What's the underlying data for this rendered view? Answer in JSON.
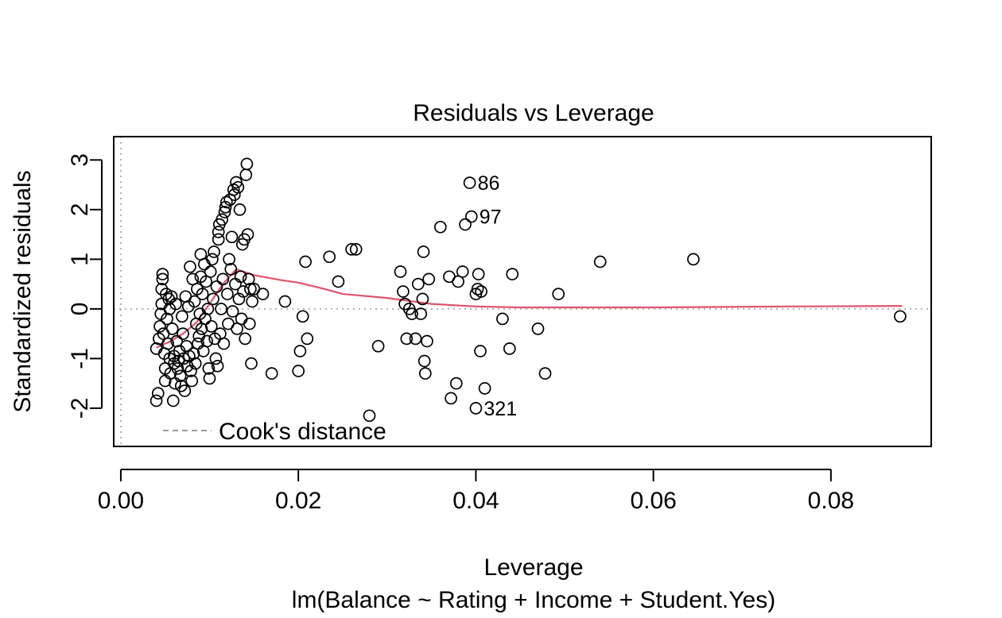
{
  "chart_data": {
    "type": "scatter",
    "title": "Residuals vs Leverage",
    "xlabel": "Leverage",
    "sublabel": "lm(Balance ~ Rating + Income + Student.Yes)",
    "ylabel": "Standardized residuals",
    "xlim": [
      -0.0008,
      0.0913
    ],
    "ylim": [
      -2.77,
      3.47
    ],
    "x_ticks": [
      0.0,
      0.02,
      0.04,
      0.06,
      0.08
    ],
    "x_tick_labels": [
      "0.00",
      "0.02",
      "0.04",
      "0.06",
      "0.08"
    ],
    "y_ticks": [
      -2,
      -1,
      0,
      1,
      2,
      3
    ],
    "y_tick_labels": [
      "-2",
      "-1",
      "0",
      "1",
      "2",
      "3"
    ],
    "reference_lines": {
      "h": 0,
      "v": 0,
      "style": "dotted",
      "color": "#b0b0b0"
    },
    "legend": {
      "label": "Cook's distance",
      "position": "bottom-left",
      "color": "#999999"
    },
    "smoother_color": "#DF536B",
    "smoother": [
      [
        0.004,
        -0.78
      ],
      [
        0.0055,
        -0.66
      ],
      [
        0.007,
        -0.5
      ],
      [
        0.0085,
        -0.28
      ],
      [
        0.01,
        0.1
      ],
      [
        0.0115,
        0.5
      ],
      [
        0.013,
        0.8
      ],
      [
        0.015,
        0.68
      ],
      [
        0.018,
        0.58
      ],
      [
        0.02,
        0.53
      ],
      [
        0.023,
        0.4
      ],
      [
        0.025,
        0.3
      ],
      [
        0.03,
        0.22
      ],
      [
        0.035,
        0.1
      ],
      [
        0.04,
        0.05
      ],
      [
        0.045,
        0.03
      ],
      [
        0.06,
        0.03
      ],
      [
        0.075,
        0.05
      ],
      [
        0.088,
        0.06
      ]
    ],
    "labeled_points": [
      {
        "label": "86",
        "x": 0.0393,
        "y": 2.54
      },
      {
        "label": "97",
        "x": 0.0395,
        "y": 1.86
      },
      {
        "label": "321",
        "x": 0.04,
        "y": -2.0
      }
    ],
    "points": [
      [
        0.004,
        -0.8
      ],
      [
        0.004,
        -1.85
      ],
      [
        0.0042,
        -1.7
      ],
      [
        0.0043,
        -0.6
      ],
      [
        0.0044,
        -0.35
      ],
      [
        0.0045,
        -0.1
      ],
      [
        0.0046,
        0.1
      ],
      [
        0.0046,
        0.4
      ],
      [
        0.0047,
        0.6
      ],
      [
        0.0047,
        0.7
      ],
      [
        0.0048,
        -0.5
      ],
      [
        0.0049,
        -0.9
      ],
      [
        0.005,
        -1.2
      ],
      [
        0.005,
        -1.45
      ],
      [
        0.0051,
        0.3
      ],
      [
        0.0052,
        -0.2
      ],
      [
        0.0053,
        -0.7
      ],
      [
        0.0054,
        0.2
      ],
      [
        0.0055,
        -1.0
      ],
      [
        0.0055,
        0.0
      ],
      [
        0.0056,
        -1.3
      ],
      [
        0.0057,
        0.25
      ],
      [
        0.0058,
        -0.4
      ],
      [
        0.0059,
        -1.85
      ],
      [
        0.006,
        -0.95
      ],
      [
        0.006,
        -1.1
      ],
      [
        0.0061,
        -1.5
      ],
      [
        0.0062,
        0.1
      ],
      [
        0.0063,
        -0.65
      ],
      [
        0.0064,
        -1.2
      ],
      [
        0.0065,
        -1.05
      ],
      [
        0.0066,
        -0.85
      ],
      [
        0.0067,
        -1.35
      ],
      [
        0.0068,
        -1.55
      ],
      [
        0.0069,
        -0.15
      ],
      [
        0.007,
        -0.5
      ],
      [
        0.0071,
        -1.0
      ],
      [
        0.0072,
        -1.65
      ],
      [
        0.0073,
        0.25
      ],
      [
        0.0074,
        -0.75
      ],
      [
        0.0075,
        -1.15
      ],
      [
        0.0076,
        0.05
      ],
      [
        0.0077,
        -0.95
      ],
      [
        0.0078,
        0.85
      ],
      [
        0.0079,
        -1.25
      ],
      [
        0.008,
        -1.45
      ],
      [
        0.0081,
        0.6
      ],
      [
        0.0082,
        -0.9
      ],
      [
        0.0083,
        0.15
      ],
      [
        0.0084,
        -1.1
      ],
      [
        0.0085,
        -0.3
      ],
      [
        0.0086,
        0.4
      ],
      [
        0.0087,
        -0.7
      ],
      [
        0.0088,
        -0.55
      ],
      [
        0.0089,
        -0.1
      ],
      [
        0.009,
        1.1
      ],
      [
        0.009,
        0.65
      ],
      [
        0.0091,
        -0.4
      ],
      [
        0.0092,
        0.3
      ],
      [
        0.0093,
        -0.85
      ],
      [
        0.0094,
        0.9
      ],
      [
        0.0095,
        -0.2
      ],
      [
        0.0096,
        0.55
      ],
      [
        0.0097,
        -0.65
      ],
      [
        0.0098,
        0.0
      ],
      [
        0.0099,
        -1.2
      ],
      [
        0.01,
        -1.4
      ],
      [
        0.0101,
        0.75
      ],
      [
        0.0102,
        -0.35
      ],
      [
        0.0103,
        1.0
      ],
      [
        0.0104,
        0.2
      ],
      [
        0.0105,
        1.15
      ],
      [
        0.0106,
        -0.6
      ],
      [
        0.0107,
        -1.0
      ],
      [
        0.0108,
        0.45
      ],
      [
        0.0109,
        -1.15
      ],
      [
        0.011,
        1.4
      ],
      [
        0.011,
        1.55
      ],
      [
        0.0111,
        1.7
      ],
      [
        0.0112,
        -0.5
      ],
      [
        0.0113,
        0.0
      ],
      [
        0.0114,
        1.8
      ],
      [
        0.0115,
        0.6
      ],
      [
        0.0116,
        -0.7
      ],
      [
        0.0117,
        1.95
      ],
      [
        0.0118,
        2.05
      ],
      [
        0.0119,
        2.15
      ],
      [
        0.012,
        0.3
      ],
      [
        0.0121,
        -0.3
      ],
      [
        0.0122,
        1.0
      ],
      [
        0.0123,
        2.2
      ],
      [
        0.0124,
        0.8
      ],
      [
        0.0125,
        1.45
      ],
      [
        0.0126,
        -0.05
      ],
      [
        0.0127,
        2.4
      ],
      [
        0.0128,
        2.3
      ],
      [
        0.0129,
        0.5
      ],
      [
        0.013,
        2.55
      ],
      [
        0.0131,
        -0.4
      ],
      [
        0.0132,
        2.45
      ],
      [
        0.0133,
        0.2
      ],
      [
        0.0134,
        2.0
      ],
      [
        0.0135,
        0.65
      ],
      [
        0.0136,
        -0.2
      ],
      [
        0.0137,
        1.3
      ],
      [
        0.0138,
        0.35
      ],
      [
        0.0139,
        1.4
      ],
      [
        0.014,
        -0.6
      ],
      [
        0.0141,
        2.7
      ],
      [
        0.0142,
        2.92
      ],
      [
        0.0143,
        1.5
      ],
      [
        0.0144,
        0.6
      ],
      [
        0.0145,
        -0.3
      ],
      [
        0.0146,
        0.4
      ],
      [
        0.0147,
        -1.1
      ],
      [
        0.0148,
        0.15
      ],
      [
        0.015,
        0.4
      ],
      [
        0.016,
        0.3
      ],
      [
        0.017,
        -1.3
      ],
      [
        0.0185,
        0.15
      ],
      [
        0.02,
        -1.25
      ],
      [
        0.0202,
        -0.85
      ],
      [
        0.0205,
        -0.15
      ],
      [
        0.0208,
        0.95
      ],
      [
        0.021,
        -0.6
      ],
      [
        0.0235,
        1.05
      ],
      [
        0.0245,
        0.55
      ],
      [
        0.026,
        1.2
      ],
      [
        0.0265,
        1.2
      ],
      [
        0.028,
        -2.15
      ],
      [
        0.029,
        -0.75
      ],
      [
        0.0315,
        0.75
      ],
      [
        0.0318,
        0.35
      ],
      [
        0.032,
        0.1
      ],
      [
        0.0322,
        -0.6
      ],
      [
        0.0325,
        0.0
      ],
      [
        0.0328,
        -0.1
      ],
      [
        0.0332,
        -0.6
      ],
      [
        0.0335,
        0.5
      ],
      [
        0.0338,
        -0.1
      ],
      [
        0.034,
        0.2
      ],
      [
        0.0341,
        1.15
      ],
      [
        0.0342,
        -1.05
      ],
      [
        0.0343,
        -1.3
      ],
      [
        0.0345,
        -0.65
      ],
      [
        0.0347,
        0.6
      ],
      [
        0.036,
        1.65
      ],
      [
        0.037,
        0.65
      ],
      [
        0.0372,
        -1.8
      ],
      [
        0.0378,
        -1.5
      ],
      [
        0.038,
        0.55
      ],
      [
        0.0385,
        0.75
      ],
      [
        0.0388,
        1.7
      ],
      [
        0.04,
        0.3
      ],
      [
        0.0402,
        0.4
      ],
      [
        0.0403,
        0.7
      ],
      [
        0.0405,
        -0.85
      ],
      [
        0.0406,
        0.35
      ],
      [
        0.041,
        -1.6
      ],
      [
        0.043,
        -0.2
      ],
      [
        0.0438,
        -0.8
      ],
      [
        0.0441,
        0.7
      ],
      [
        0.047,
        -0.4
      ],
      [
        0.0478,
        -1.3
      ],
      [
        0.0493,
        0.3
      ],
      [
        0.054,
        0.95
      ],
      [
        0.0645,
        1.0
      ],
      [
        0.0878,
        -0.15
      ],
      [
        0.0393,
        2.54
      ],
      [
        0.0395,
        1.86
      ],
      [
        0.04,
        -2.0
      ]
    ]
  }
}
